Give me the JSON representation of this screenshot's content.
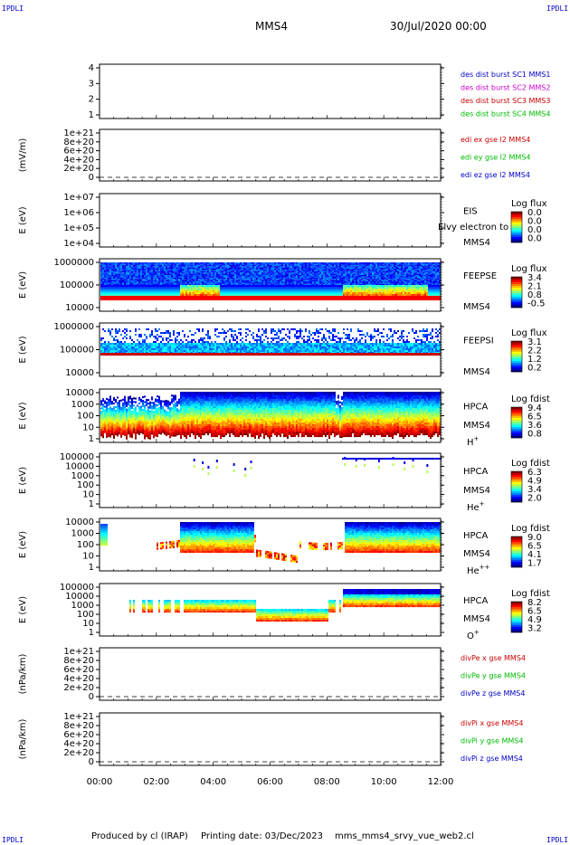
{
  "corners": {
    "tl": "IPDLI",
    "tr": "IPDLI",
    "bl": "IPDLI",
    "br": "IPDLI"
  },
  "header": {
    "mission": "MMS4",
    "date": "30/Jul/2020 00:00"
  },
  "footer": {
    "produced": "Produced by cl (IRAP)",
    "printing": "Printing date: 03/Dec/2023",
    "file": "mms_mms4_srvy_vue_web2.cl"
  },
  "colors": {
    "blue": "#0000cc",
    "red": "#cc0000",
    "green": "#00bb00",
    "magenta": "#cc00cc"
  },
  "chart_data": [
    {
      "type": "line",
      "id": "des",
      "yticks": [
        "1",
        "2",
        "3",
        "4"
      ],
      "ylim": [
        1,
        4
      ],
      "series": [
        {
          "name": "des dist burst SC1 MMS1",
          "color": "blue",
          "values": []
        },
        {
          "name": "des dist burst SC2 MMS2",
          "color": "magenta",
          "values": []
        },
        {
          "name": "des dist burst SC3 MMS3",
          "color": "red",
          "values": []
        },
        {
          "name": "des dist burst SC4 MMS4",
          "color": "green",
          "values": []
        }
      ]
    },
    {
      "type": "line",
      "id": "edi",
      "ylabel": "(mV/m)",
      "yticks": [
        "0",
        "2e+20",
        "4e+20",
        "6e+20",
        "8e+20",
        "1e+21"
      ],
      "ylim": [
        0,
        1e+21
      ],
      "series": [
        {
          "name": "edi ex gse l2 MMS4",
          "color": "red",
          "values": []
        },
        {
          "name": "edi ey gse l2 MMS4",
          "color": "green",
          "values": []
        },
        {
          "name": "edi ez gse l2 MMS4",
          "color": "blue",
          "values": []
        }
      ]
    },
    {
      "type": "heatmap",
      "id": "eis",
      "ylabel": "E (eV)",
      "yticks": [
        "1e+04",
        "1e+05",
        "1e+06",
        "1e+07"
      ],
      "ylim": [
        10000,
        10000000
      ],
      "scale": "log",
      "name": "EIS",
      "extra": "Elvy electron to",
      "sc": "MMS4",
      "cbar": {
        "title": "Log flux",
        "ticks": [
          "0.0",
          "0.0",
          "0.0",
          "0.0"
        ]
      }
    },
    {
      "type": "heatmap",
      "id": "feepse",
      "ylabel": "E (eV)",
      "yticks": [
        "10000",
        "100000",
        "1000000"
      ],
      "ylim": [
        10000,
        1000000
      ],
      "scale": "log",
      "name": "FEEPSE",
      "sc": "MMS4",
      "cbar": {
        "title": "Log flux",
        "ticks": [
          "3.4",
          "2.1",
          "0.8",
          "-0.5"
        ]
      }
    },
    {
      "type": "heatmap",
      "id": "feepsi",
      "ylabel": "E (eV)",
      "yticks": [
        "10000",
        "100000",
        "1000000"
      ],
      "ylim": [
        10000,
        1000000
      ],
      "scale": "log",
      "name": "FEEPSI",
      "sc": "MMS4",
      "cbar": {
        "title": "Log flux",
        "ticks": [
          "3.1",
          "2.2",
          "1.2",
          "0.2"
        ]
      }
    },
    {
      "type": "heatmap",
      "id": "hpca_h",
      "ylabel": "E (eV)",
      "yticks": [
        "1",
        "10",
        "100",
        "1000",
        "10000"
      ],
      "ylim": [
        1,
        30000
      ],
      "scale": "log",
      "name": "HPCA",
      "sc": "MMS4",
      "ion": "H",
      "ionsup": "+",
      "cbar": {
        "title": "Log fdist",
        "ticks": [
          "9.4",
          "6.5",
          "3.6",
          "0.8"
        ]
      }
    },
    {
      "type": "heatmap",
      "id": "hpca_he",
      "ylabel": "E (eV)",
      "yticks": [
        "1",
        "10",
        "100",
        "1000",
        "10000",
        "100000"
      ],
      "ylim": [
        1,
        100000
      ],
      "scale": "log",
      "name": "HPCA",
      "sc": "MMS4",
      "ion": "He",
      "ionsup": "+",
      "cbar": {
        "title": "Log fdist",
        "ticks": [
          "6.3",
          "4.9",
          "3.4",
          "2.0"
        ]
      }
    },
    {
      "type": "heatmap",
      "id": "hpca_he2",
      "ylabel": "E (eV)",
      "yticks": [
        "1",
        "10",
        "100",
        "1000",
        "10000"
      ],
      "ylim": [
        1,
        30000
      ],
      "scale": "log",
      "name": "HPCA",
      "sc": "MMS4",
      "ion": "He",
      "ionsup": "++",
      "cbar": {
        "title": "Log fdist",
        "ticks": [
          "9.0",
          "6.5",
          "4.1",
          "1.7"
        ]
      }
    },
    {
      "type": "heatmap",
      "id": "hpca_o",
      "ylabel": "E (eV)",
      "yticks": [
        "1",
        "10",
        "100",
        "1000",
        "10000",
        "100000"
      ],
      "ylim": [
        1,
        100000
      ],
      "scale": "log",
      "name": "HPCA",
      "sc": "MMS4",
      "ion": "O",
      "ionsup": "+",
      "cbar": {
        "title": "Log fdist",
        "ticks": [
          "8.2",
          "6.5",
          "4.9",
          "3.2"
        ]
      }
    },
    {
      "type": "line",
      "id": "divpe",
      "ylabel": "(nPa/km)",
      "yticks": [
        "0",
        "2e+20",
        "4e+20",
        "6e+20",
        "8e+20",
        "1e+21"
      ],
      "ylim": [
        0,
        1e+21
      ],
      "series": [
        {
          "name": "divPe x gse MMS4",
          "color": "red",
          "values": []
        },
        {
          "name": "divPe y gse MMS4",
          "color": "green",
          "values": []
        },
        {
          "name": "divPe z gse MMS4",
          "color": "blue",
          "values": []
        }
      ]
    },
    {
      "type": "line",
      "id": "divpi",
      "ylabel": "(nPa/km)",
      "yticks": [
        "0",
        "2e+20",
        "4e+20",
        "6e+20",
        "8e+20",
        "1e+21"
      ],
      "ylim": [
        0,
        1e+21
      ],
      "series": [
        {
          "name": "divPi x gse MMS4",
          "color": "red",
          "values": []
        },
        {
          "name": "divPi y gse MMS4",
          "color": "green",
          "values": []
        },
        {
          "name": "divPi z gse MMS4",
          "color": "blue",
          "values": []
        }
      ]
    }
  ],
  "xaxis": {
    "ticks": [
      "00:00",
      "02:00",
      "04:00",
      "06:00",
      "08:00",
      "10:00",
      "12:00"
    ],
    "xlim": [
      0,
      12
    ]
  }
}
